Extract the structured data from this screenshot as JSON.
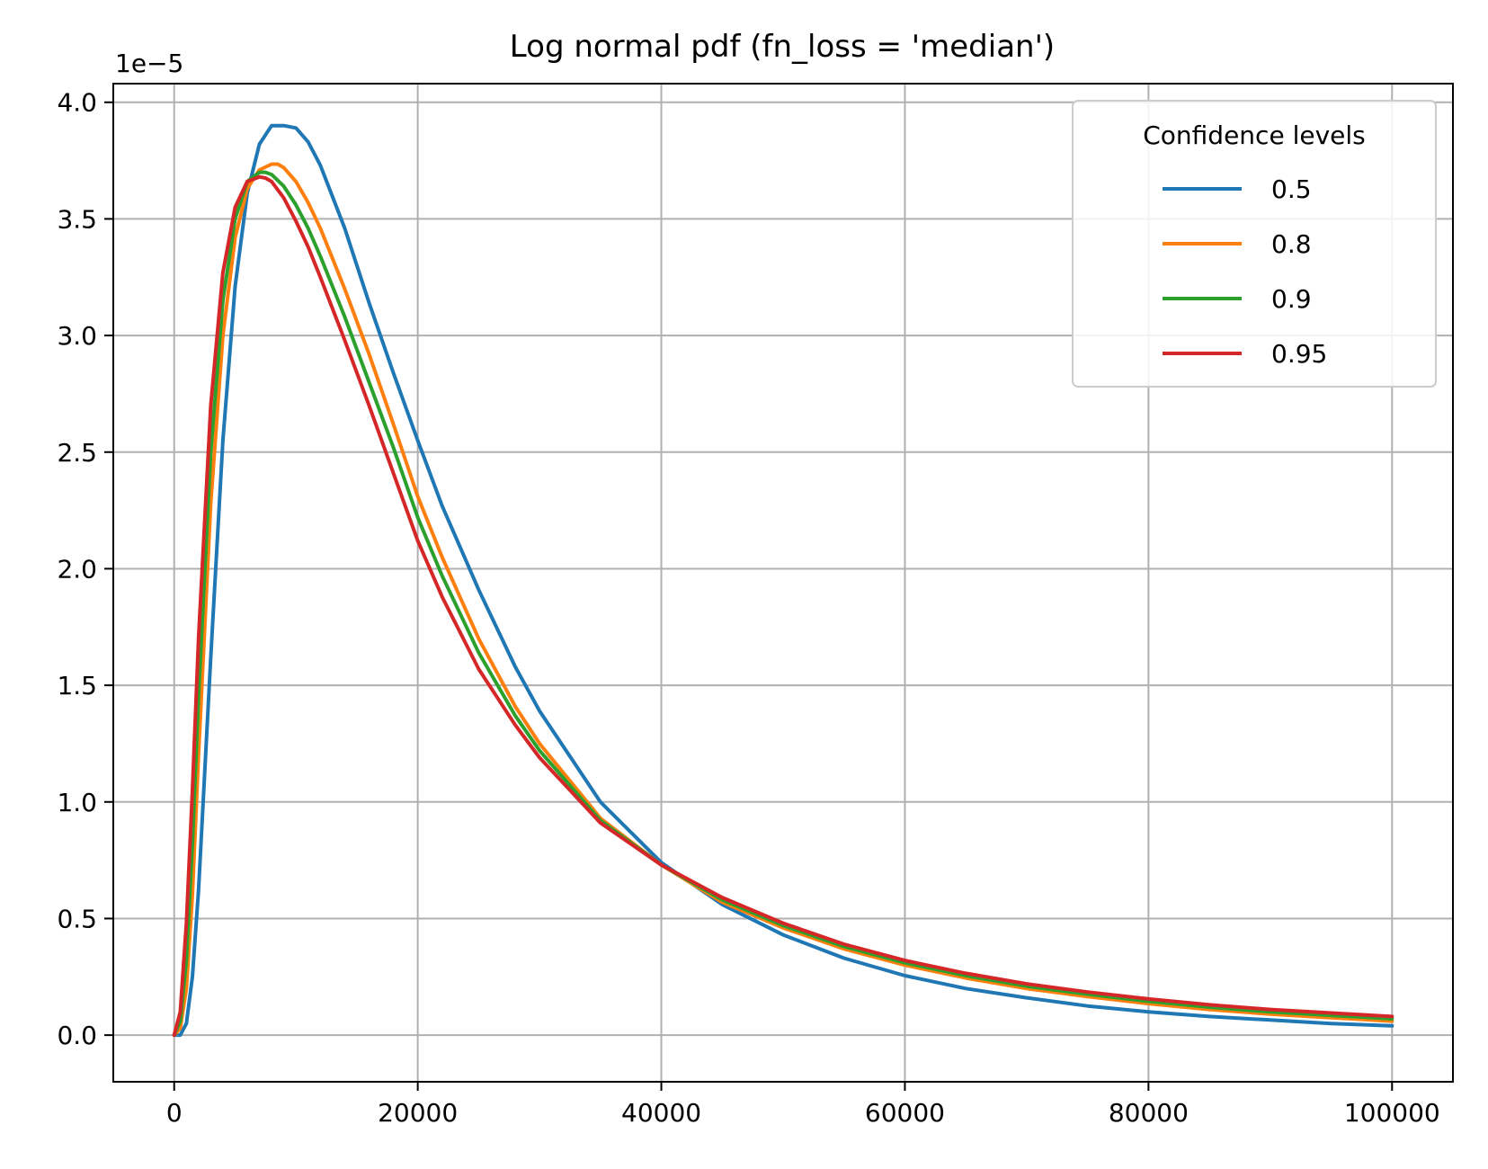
{
  "chart_data": {
    "type": "line",
    "title": "Log normal pdf (fn_loss = 'median')",
    "xlabel": "",
    "ylabel": "",
    "y_offset_label": "1e−5",
    "xlim": [
      -5000,
      105000
    ],
    "ylim": [
      -0.2,
      4.08
    ],
    "y_scale": 1e-05,
    "x_ticks": [
      0,
      20000,
      40000,
      60000,
      80000,
      100000
    ],
    "x_tick_labels": [
      "0",
      "20000",
      "40000",
      "60000",
      "80000",
      "100000"
    ],
    "y_ticks": [
      0.0,
      0.5,
      1.0,
      1.5,
      2.0,
      2.5,
      3.0,
      3.5,
      4.0
    ],
    "y_tick_labels": [
      "0.0",
      "0.5",
      "1.0",
      "1.5",
      "2.0",
      "2.5",
      "3.0",
      "3.5",
      "4.0"
    ],
    "grid": true,
    "legend": {
      "title": "Confidence levels",
      "placement": "top-right"
    },
    "series": [
      {
        "name": "0.5",
        "color": "#1f77b4",
        "x": [
          0,
          500,
          1000,
          1500,
          2000,
          3000,
          4000,
          5000,
          6000,
          7000,
          8000,
          9000,
          10000,
          11000,
          12000,
          14000,
          16000,
          18000,
          20000,
          22000,
          25000,
          28000,
          30000,
          35000,
          40000,
          45000,
          50000,
          55000,
          60000,
          65000,
          70000,
          75000,
          80000,
          85000,
          90000,
          95000,
          100000
        ],
        "y": [
          0.0,
          0.0,
          0.05,
          0.25,
          0.62,
          1.62,
          2.55,
          3.21,
          3.61,
          3.82,
          3.9,
          3.9,
          3.89,
          3.83,
          3.73,
          3.46,
          3.14,
          2.84,
          2.55,
          2.27,
          1.91,
          1.58,
          1.39,
          1.0,
          0.74,
          0.56,
          0.43,
          0.33,
          0.255,
          0.2,
          0.16,
          0.125,
          0.1,
          0.08,
          0.065,
          0.05,
          0.04
        ]
      },
      {
        "name": "0.8",
        "color": "#ff7f0e",
        "x": [
          0,
          500,
          1000,
          1500,
          2000,
          3000,
          4000,
          5000,
          6000,
          7000,
          8000,
          8500,
          9000,
          10000,
          11000,
          12000,
          14000,
          16000,
          18000,
          20000,
          22000,
          25000,
          28000,
          30000,
          35000,
          40000,
          45000,
          50000,
          55000,
          60000,
          65000,
          70000,
          75000,
          80000,
          85000,
          90000,
          95000,
          100000
        ],
        "y": [
          0.0,
          0.03,
          0.2,
          0.6,
          1.2,
          2.28,
          3.0,
          3.42,
          3.63,
          3.71,
          3.735,
          3.735,
          3.72,
          3.66,
          3.57,
          3.46,
          3.2,
          2.92,
          2.62,
          2.31,
          2.05,
          1.7,
          1.41,
          1.25,
          0.93,
          0.73,
          0.57,
          0.46,
          0.37,
          0.3,
          0.245,
          0.2,
          0.165,
          0.135,
          0.11,
          0.09,
          0.075,
          0.06
        ]
      },
      {
        "name": "0.9",
        "color": "#2ca02c",
        "x": [
          0,
          500,
          1000,
          1500,
          2000,
          3000,
          4000,
          5000,
          6000,
          7000,
          7500,
          8000,
          9000,
          10000,
          11000,
          12000,
          14000,
          16000,
          18000,
          20000,
          22000,
          25000,
          28000,
          30000,
          35000,
          40000,
          45000,
          50000,
          55000,
          60000,
          65000,
          70000,
          75000,
          80000,
          85000,
          90000,
          95000,
          100000
        ],
        "y": [
          0.0,
          0.06,
          0.32,
          0.82,
          1.45,
          2.5,
          3.15,
          3.5,
          3.66,
          3.7,
          3.7,
          3.69,
          3.64,
          3.56,
          3.46,
          3.34,
          3.08,
          2.8,
          2.52,
          2.22,
          1.97,
          1.64,
          1.37,
          1.22,
          0.92,
          0.73,
          0.58,
          0.47,
          0.38,
          0.31,
          0.255,
          0.21,
          0.175,
          0.145,
          0.12,
          0.1,
          0.085,
          0.07
        ]
      },
      {
        "name": "0.95",
        "color": "#d62728",
        "x": [
          0,
          500,
          1000,
          1500,
          2000,
          3000,
          4000,
          5000,
          6000,
          7000,
          7500,
          8000,
          9000,
          10000,
          11000,
          12000,
          14000,
          16000,
          18000,
          20000,
          22000,
          25000,
          28000,
          30000,
          35000,
          40000,
          45000,
          50000,
          55000,
          60000,
          65000,
          70000,
          75000,
          80000,
          85000,
          90000,
          95000,
          100000
        ],
        "y": [
          0.0,
          0.1,
          0.48,
          1.05,
          1.7,
          2.7,
          3.27,
          3.55,
          3.66,
          3.68,
          3.675,
          3.66,
          3.59,
          3.49,
          3.38,
          3.25,
          2.98,
          2.7,
          2.41,
          2.12,
          1.88,
          1.57,
          1.33,
          1.19,
          0.91,
          0.73,
          0.59,
          0.48,
          0.39,
          0.32,
          0.265,
          0.22,
          0.185,
          0.155,
          0.13,
          0.11,
          0.095,
          0.08
        ]
      }
    ]
  }
}
